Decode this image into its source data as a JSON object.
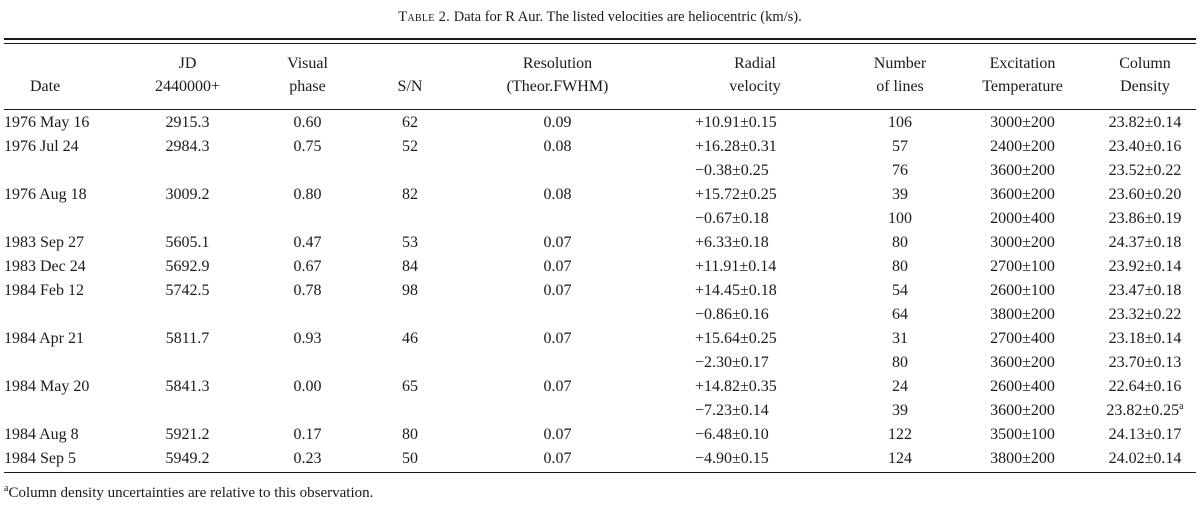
{
  "table": {
    "caption_prefix": "Table 2.",
    "caption_text": "Data for R Aur. The listed velocities are heliocentric (km/s).",
    "headers": [
      {
        "top": "",
        "bottom": "Date"
      },
      {
        "top": "JD",
        "bottom": "2440000+"
      },
      {
        "top": "Visual",
        "bottom": "phase"
      },
      {
        "top": "",
        "bottom": "S/N"
      },
      {
        "top": "Resolution",
        "bottom": "(Theor.FWHM)"
      },
      {
        "top": "Radial",
        "bottom": "velocity"
      },
      {
        "top": "Number",
        "bottom": "of lines"
      },
      {
        "top": "Excitation",
        "bottom": "Temperature"
      },
      {
        "top": "Column",
        "bottom": "Density"
      }
    ],
    "rows": [
      {
        "date": "1976 May 16",
        "jd": "2915.3",
        "phase": "0.60",
        "sn": "62",
        "res": "0.09",
        "rv": "+10.91±0.15",
        "nlines": "106",
        "temp": "3000±200",
        "cd": "23.82±0.14",
        "cd_note": ""
      },
      {
        "date": "1976 Jul 24",
        "jd": "2984.3",
        "phase": "0.75",
        "sn": "52",
        "res": "0.08",
        "rv": "+16.28±0.31",
        "nlines": "57",
        "temp": "2400±200",
        "cd": "23.40±0.16",
        "cd_note": ""
      },
      {
        "date": "",
        "jd": "",
        "phase": "",
        "sn": "",
        "res": "",
        "rv": "−0.38±0.25",
        "nlines": "76",
        "temp": "3600±200",
        "cd": "23.52±0.22",
        "cd_note": ""
      },
      {
        "date": "1976 Aug 18",
        "jd": "3009.2",
        "phase": "0.80",
        "sn": "82",
        "res": "0.08",
        "rv": "+15.72±0.25",
        "nlines": "39",
        "temp": "3600±200",
        "cd": "23.60±0.20",
        "cd_note": ""
      },
      {
        "date": "",
        "jd": "",
        "phase": "",
        "sn": "",
        "res": "",
        "rv": "−0.67±0.18",
        "nlines": "100",
        "temp": "2000±400",
        "cd": "23.86±0.19",
        "cd_note": ""
      },
      {
        "date": "1983 Sep 27",
        "jd": "5605.1",
        "phase": "0.47",
        "sn": "53",
        "res": "0.07",
        "rv": "+6.33±0.18",
        "nlines": "80",
        "temp": "3000±200",
        "cd": "24.37±0.18",
        "cd_note": ""
      },
      {
        "date": "1983 Dec 24",
        "jd": "5692.9",
        "phase": "0.67",
        "sn": "84",
        "res": "0.07",
        "rv": "+11.91±0.14",
        "nlines": "80",
        "temp": "2700±100",
        "cd": "23.92±0.14",
        "cd_note": ""
      },
      {
        "date": "1984 Feb 12",
        "jd": "5742.5",
        "phase": "0.78",
        "sn": "98",
        "res": "0.07",
        "rv": "+14.45±0.18",
        "nlines": "54",
        "temp": "2600±100",
        "cd": "23.47±0.18",
        "cd_note": ""
      },
      {
        "date": "",
        "jd": "",
        "phase": "",
        "sn": "",
        "res": "",
        "rv": "−0.86±0.16",
        "nlines": "64",
        "temp": "3800±200",
        "cd": "23.32±0.22",
        "cd_note": ""
      },
      {
        "date": "1984 Apr 21",
        "jd": "5811.7",
        "phase": "0.93",
        "sn": "46",
        "res": "0.07",
        "rv": "+15.64±0.25",
        "nlines": "31",
        "temp": "2700±400",
        "cd": "23.18±0.14",
        "cd_note": ""
      },
      {
        "date": "",
        "jd": "",
        "phase": "",
        "sn": "",
        "res": "",
        "rv": "−2.30±0.17",
        "nlines": "80",
        "temp": "3600±200",
        "cd": "23.70±0.13",
        "cd_note": ""
      },
      {
        "date": "1984 May 20",
        "jd": "5841.3",
        "phase": "0.00",
        "sn": "65",
        "res": "0.07",
        "rv": "+14.82±0.35",
        "nlines": "24",
        "temp": "2600±400",
        "cd": "22.64±0.16",
        "cd_note": ""
      },
      {
        "date": "",
        "jd": "",
        "phase": "",
        "sn": "",
        "res": "",
        "rv": "−7.23±0.14",
        "nlines": "39",
        "temp": "3600±200",
        "cd": "23.82±0.25",
        "cd_note": "a"
      },
      {
        "date": "1984 Aug 8",
        "jd": "5921.2",
        "phase": "0.17",
        "sn": "80",
        "res": "0.07",
        "rv": "−6.48±0.10",
        "nlines": "122",
        "temp": "3500±100",
        "cd": "24.13±0.17",
        "cd_note": ""
      },
      {
        "date": "1984 Sep 5",
        "jd": "5949.2",
        "phase": "0.23",
        "sn": "50",
        "res": "0.07",
        "rv": "−4.90±0.15",
        "nlines": "124",
        "temp": "3800±200",
        "cd": "24.02±0.14",
        "cd_note": ""
      }
    ],
    "footnote_mark": "a",
    "footnote_text": "Column density uncertainties are relative to this observation."
  }
}
